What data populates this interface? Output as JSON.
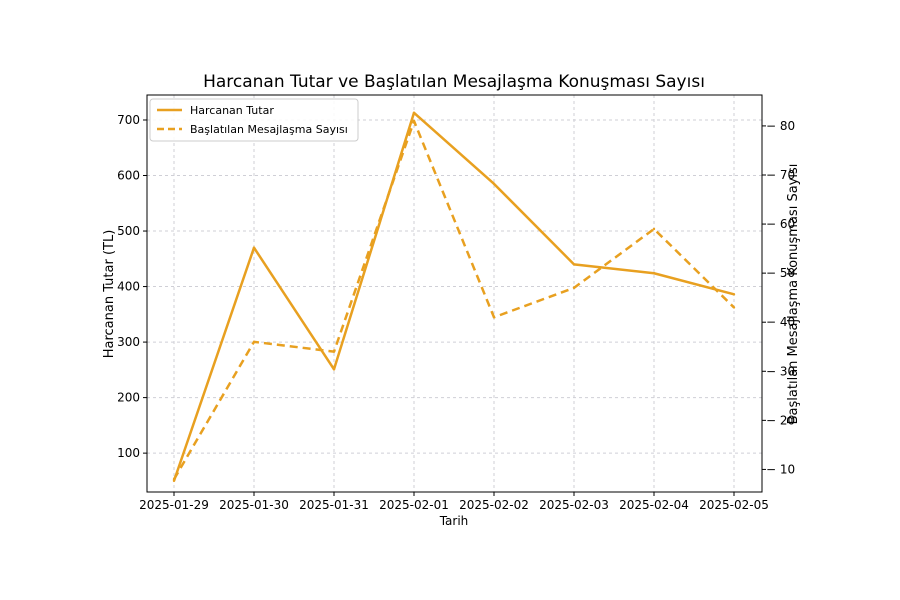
{
  "chart_data": {
    "type": "line",
    "title": "Harcanan Tutar ve Başlatılan Mesajlaşma Konuşması Sayısı",
    "xlabel": "Tarih",
    "ylabel_left": "Harcanan Tutar (TL)",
    "ylabel_right": "Başlatılan Mesajlaşma Konuşması Sayısı",
    "categories": [
      "2025-01-29",
      "2025-01-30",
      "2025-01-31",
      "2025-02-01",
      "2025-02-02",
      "2025-02-03",
      "2025-02-04",
      "2025-02-05"
    ],
    "ylim_left": [
      30,
      745
    ],
    "yticks_left": [
      100,
      200,
      300,
      400,
      500,
      600,
      700
    ],
    "ylim_right": [
      5.4,
      86.3
    ],
    "yticks_right": [
      10,
      20,
      30,
      40,
      50,
      60,
      70,
      80
    ],
    "grid": true,
    "legend_position": "top-left",
    "series": [
      {
        "name": "Harcanan Tutar",
        "axis": "left",
        "style": "solid",
        "color": "#e8a020",
        "values": [
          50,
          470,
          251,
          713,
          585,
          440,
          424,
          386
        ]
      },
      {
        "name": "Başlatılan Mesajlaşma Sayısı",
        "axis": "right",
        "style": "dashed",
        "color": "#e8a020",
        "values": [
          8,
          36,
          34,
          81,
          41,
          47,
          59,
          43
        ]
      }
    ]
  }
}
